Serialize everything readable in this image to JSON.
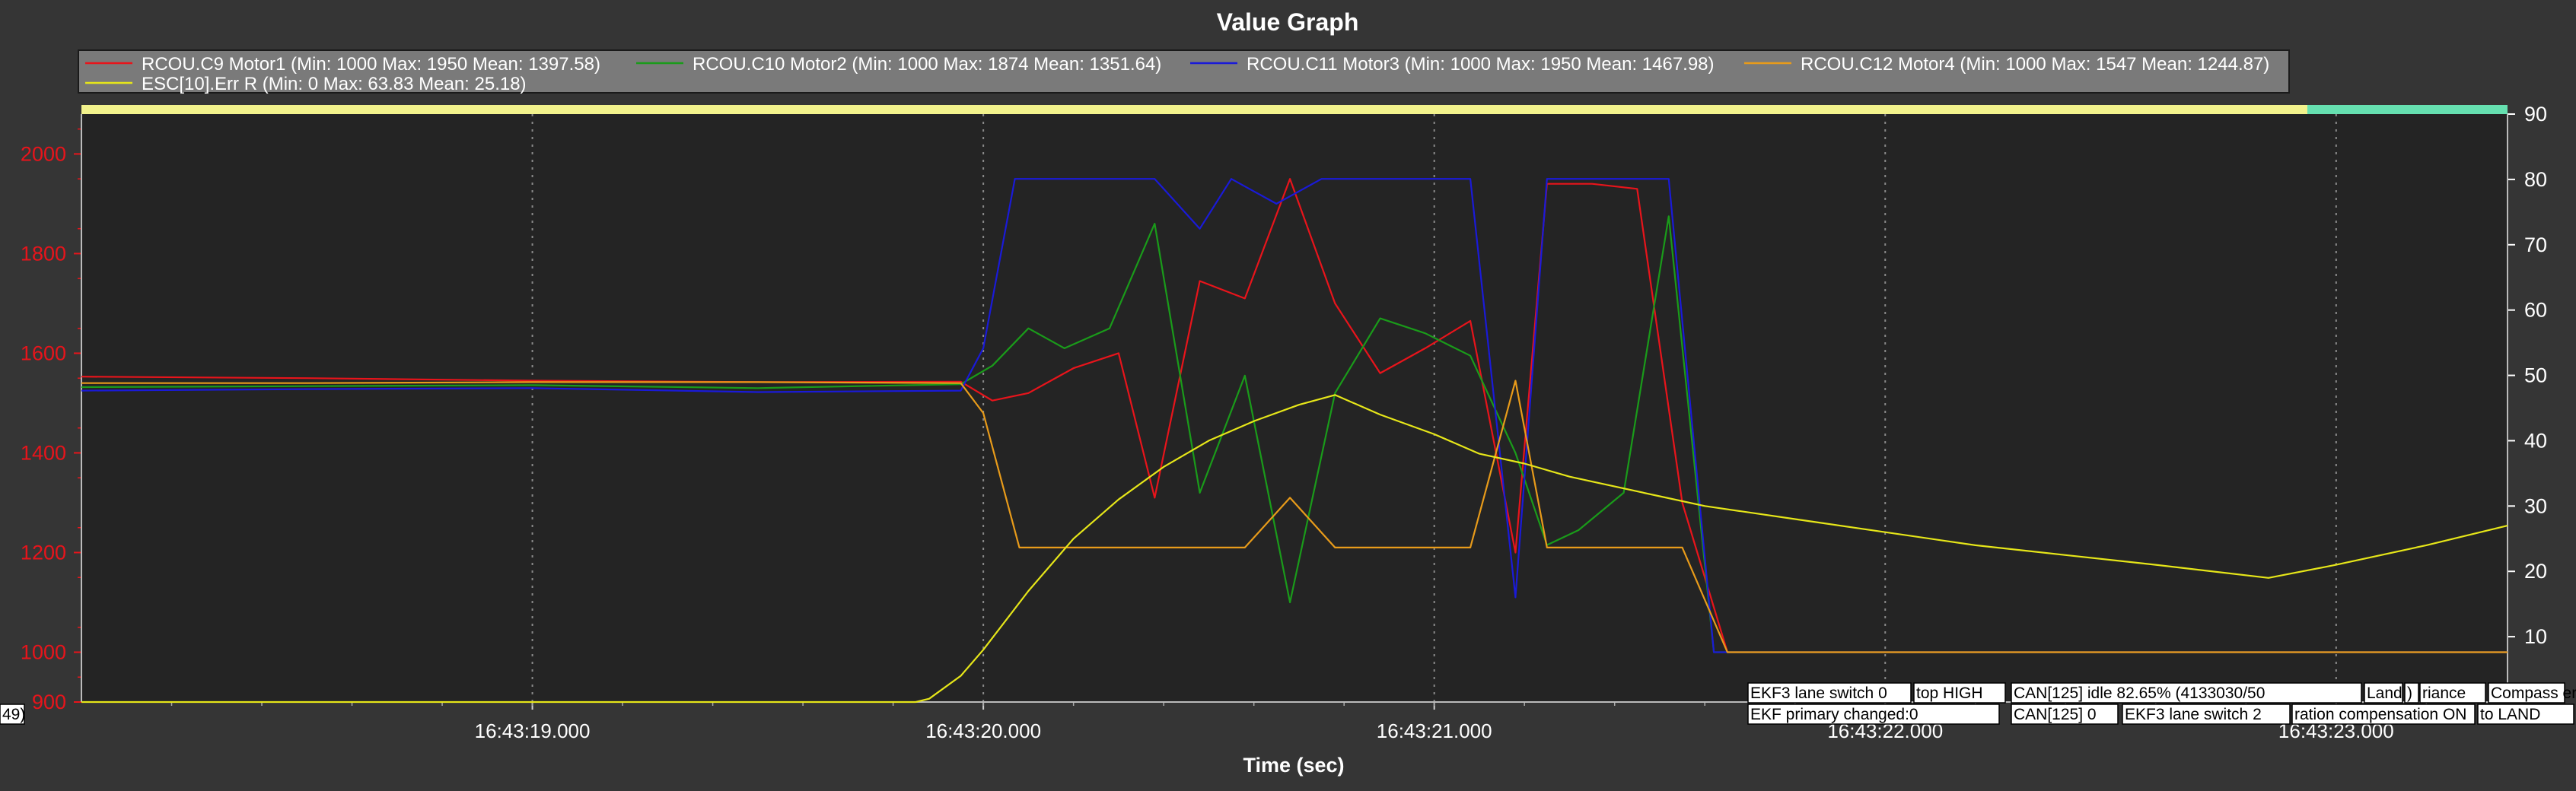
{
  "chart_data": {
    "type": "line",
    "title": "Value Graph",
    "xlabel": "Time (sec)",
    "ylabel": "",
    "y2label": "",
    "xlim": [
      0,
      5.38
    ],
    "ylim": [
      900,
      2080
    ],
    "y2lim": [
      0,
      90
    ],
    "x_ticks": [
      {
        "x": 1.0,
        "label": "16:43:19.000"
      },
      {
        "x": 2.0,
        "label": "16:43:20.000"
      },
      {
        "x": 3.0,
        "label": "16:43:21.000"
      },
      {
        "x": 4.0,
        "label": "16:43:22.000"
      },
      {
        "x": 5.0,
        "label": "16:43:23.000"
      }
    ],
    "y_ticks": [
      900,
      1000,
      1200,
      1400,
      1600,
      1800,
      2000
    ],
    "y_tick_labels": [
      "900",
      "1000",
      "1200",
      "1400",
      "1600",
      "1800",
      "2000"
    ],
    "y2_ticks": [
      10,
      20,
      30,
      40,
      50,
      60,
      70,
      80,
      90
    ],
    "grid": true,
    "legend_position": "top",
    "legend": [
      "RCOU.C9 Motor1 (Min: 1000 Max: 1950 Mean: 1397.58)",
      "RCOU.C10 Motor2 (Min: 1000 Max: 1874 Mean: 1351.64)",
      "RCOU.C11 Motor3 (Min: 1000 Max: 1950 Mean: 1467.98)",
      "RCOU.C12 Motor4 (Min: 1000 Max: 1547 Mean: 1244.87)",
      "ESC[10].Err  R (Min: 0 Max: 63.83 Mean: 25.18)"
    ],
    "series": [
      {
        "name": "RCOU.C9 Motor1",
        "color": "#e8141b",
        "axis": "left",
        "points": [
          [
            0,
            1553
          ],
          [
            0.5,
            1550
          ],
          [
            1.0,
            1545
          ],
          [
            1.5,
            1542
          ],
          [
            1.95,
            1543
          ],
          [
            2.02,
            1505
          ],
          [
            2.1,
            1520
          ],
          [
            2.2,
            1570
          ],
          [
            2.3,
            1600
          ],
          [
            2.38,
            1310
          ],
          [
            2.48,
            1745
          ],
          [
            2.58,
            1710
          ],
          [
            2.68,
            1950
          ],
          [
            2.78,
            1700
          ],
          [
            2.88,
            1560
          ],
          [
            2.98,
            1610
          ],
          [
            3.08,
            1665
          ],
          [
            3.18,
            1200
          ],
          [
            3.25,
            1940
          ],
          [
            3.35,
            1940
          ],
          [
            3.45,
            1930
          ],
          [
            3.55,
            1300
          ],
          [
            3.65,
            1000
          ],
          [
            5.38,
            1000
          ]
        ]
      },
      {
        "name": "RCOU.C10 Motor2",
        "color": "#1a9b1a",
        "axis": "left",
        "points": [
          [
            0,
            1532
          ],
          [
            0.5,
            1534
          ],
          [
            1.0,
            1536
          ],
          [
            1.5,
            1530
          ],
          [
            1.95,
            1538
          ],
          [
            2.02,
            1575
          ],
          [
            2.1,
            1650
          ],
          [
            2.18,
            1610
          ],
          [
            2.28,
            1650
          ],
          [
            2.38,
            1860
          ],
          [
            2.48,
            1320
          ],
          [
            2.58,
            1555
          ],
          [
            2.68,
            1100
          ],
          [
            2.78,
            1520
          ],
          [
            2.88,
            1670
          ],
          [
            2.98,
            1640
          ],
          [
            3.08,
            1595
          ],
          [
            3.18,
            1400
          ],
          [
            3.25,
            1215
          ],
          [
            3.32,
            1245
          ],
          [
            3.42,
            1320
          ],
          [
            3.52,
            1875
          ],
          [
            3.62,
            1000
          ],
          [
            5.38,
            1000
          ]
        ]
      },
      {
        "name": "RCOU.C11 Motor3",
        "color": "#1a1ad8",
        "axis": "left",
        "points": [
          [
            0,
            1525
          ],
          [
            0.5,
            1528
          ],
          [
            1.0,
            1530
          ],
          [
            1.5,
            1522
          ],
          [
            1.95,
            1525
          ],
          [
            2.0,
            1610
          ],
          [
            2.07,
            1950
          ],
          [
            2.15,
            1950
          ],
          [
            2.25,
            1950
          ],
          [
            2.38,
            1950
          ],
          [
            2.48,
            1850
          ],
          [
            2.55,
            1950
          ],
          [
            2.65,
            1900
          ],
          [
            2.75,
            1950
          ],
          [
            2.88,
            1950
          ],
          [
            3.08,
            1950
          ],
          [
            3.18,
            1110
          ],
          [
            3.25,
            1950
          ],
          [
            3.35,
            1950
          ],
          [
            3.45,
            1950
          ],
          [
            3.52,
            1950
          ],
          [
            3.62,
            1000
          ],
          [
            5.38,
            1000
          ]
        ]
      },
      {
        "name": "RCOU.C12 Motor4",
        "color": "#e89b1a",
        "axis": "left",
        "points": [
          [
            0,
            1540
          ],
          [
            0.5,
            1540
          ],
          [
            1.0,
            1542
          ],
          [
            1.5,
            1542
          ],
          [
            1.95,
            1540
          ],
          [
            2.0,
            1480
          ],
          [
            2.08,
            1210
          ],
          [
            2.15,
            1210
          ],
          [
            2.25,
            1210
          ],
          [
            2.38,
            1210
          ],
          [
            2.48,
            1210
          ],
          [
            2.58,
            1210
          ],
          [
            2.68,
            1310
          ],
          [
            2.78,
            1210
          ],
          [
            2.88,
            1210
          ],
          [
            2.98,
            1210
          ],
          [
            3.08,
            1210
          ],
          [
            3.18,
            1545
          ],
          [
            3.25,
            1210
          ],
          [
            3.35,
            1210
          ],
          [
            3.45,
            1210
          ],
          [
            3.55,
            1210
          ],
          [
            3.65,
            1000
          ],
          [
            5.38,
            1000
          ]
        ]
      },
      {
        "name": "ESC[10].Err  R",
        "color": "#e6e619",
        "axis": "right",
        "points": [
          [
            0,
            0
          ],
          [
            1.4,
            0
          ],
          [
            1.85,
            0
          ],
          [
            1.88,
            0.5
          ],
          [
            1.95,
            4
          ],
          [
            2.0,
            8
          ],
          [
            2.1,
            17
          ],
          [
            2.2,
            25
          ],
          [
            2.3,
            31
          ],
          [
            2.4,
            36
          ],
          [
            2.5,
            40
          ],
          [
            2.6,
            43
          ],
          [
            2.7,
            45.5
          ],
          [
            2.78,
            47
          ],
          [
            2.88,
            44
          ],
          [
            3.0,
            41
          ],
          [
            3.1,
            38
          ],
          [
            3.2,
            36.5
          ],
          [
            3.3,
            34.5
          ],
          [
            3.4,
            33
          ],
          [
            3.5,
            31.5
          ],
          [
            3.6,
            30
          ],
          [
            3.8,
            28
          ],
          [
            4.0,
            26
          ],
          [
            4.2,
            24
          ],
          [
            4.4,
            22.5
          ],
          [
            4.6,
            21
          ],
          [
            4.85,
            19
          ],
          [
            5.0,
            21
          ],
          [
            5.2,
            24
          ],
          [
            5.38,
            27
          ]
        ]
      }
    ],
    "annotations": [
      "EKF3 lane switch 0",
      "top HIGH",
      "CAN[125] idle 82.65% (4133030/50",
      "Land",
      ")",
      "riance",
      "Compass error",
      "EKF primary changed:0",
      "CAN[125] 0",
      "EKF3 lane switch 2",
      "ration compensation ON",
      "to LAND",
      "49)"
    ]
  }
}
